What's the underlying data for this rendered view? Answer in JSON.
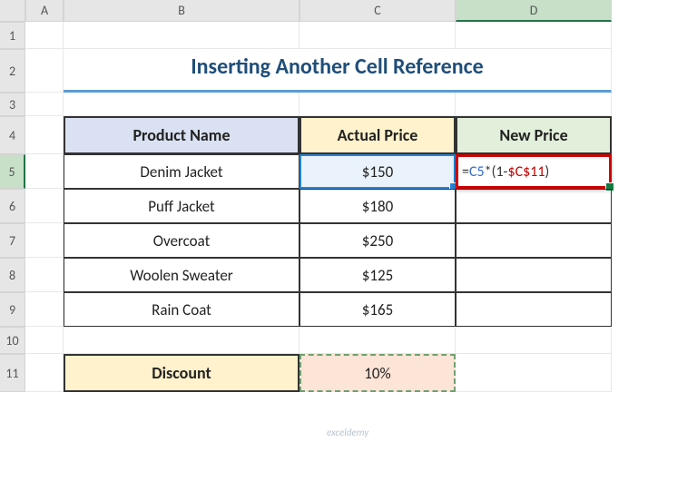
{
  "columns": [
    "A",
    "B",
    "C",
    "D"
  ],
  "rows": [
    "1",
    "2",
    "3",
    "4",
    "5",
    "6",
    "7",
    "8",
    "9",
    "10",
    "11"
  ],
  "title": "Inserting Another Cell Reference",
  "headers": {
    "product": "Product Name",
    "actual": "Actual Price",
    "newp": "New Price"
  },
  "data": [
    {
      "name": "Denim Jacket",
      "price": "$150"
    },
    {
      "name": "Puff Jacket",
      "price": "$180"
    },
    {
      "name": "Overcoat",
      "price": "$250"
    },
    {
      "name": "Woolen Sweater",
      "price": "$125"
    },
    {
      "name": "Rain Coat",
      "price": "$165"
    }
  ],
  "discount": {
    "label": "Discount",
    "value": "10%"
  },
  "formula": {
    "eq": "=",
    "ref1": "C5",
    "op1": "*(",
    "num": "1",
    "op2": "-",
    "ref2": "$C$11",
    "close": ")"
  },
  "colors": {
    "title": "#1f4e79",
    "title_underline": "#5b9bd5",
    "header_product": "#d9e1f2",
    "header_actual": "#fff2cc",
    "header_new": "#e2efda",
    "discount_label_bg": "#fff2cc",
    "discount_val_bg": "#fce4d6",
    "ref_blue": "#2684d8",
    "formula_border": "#d00000"
  },
  "watermark": "exceldemy"
}
